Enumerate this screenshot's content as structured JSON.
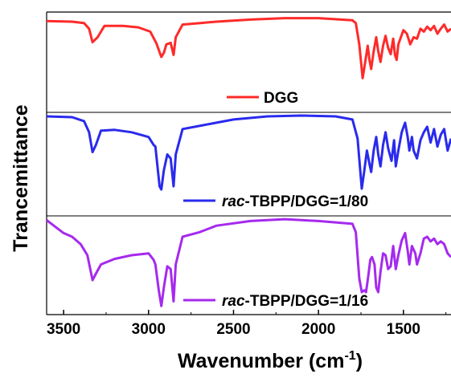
{
  "chart_data": {
    "type": "line",
    "xlabel": "Wavenumber (cm",
    "xlabel_superscript": "-1",
    "xlabel_suffix": ")",
    "ylabel": "Trancemittance",
    "xlim": [
      3600,
      1220
    ],
    "x_reversed": true,
    "x_ticks": [
      3500,
      3000,
      2500,
      2000,
      1500
    ],
    "x_tick_labels": [
      "3500",
      "3000",
      "2500",
      "2000",
      "1500"
    ],
    "legend_placement": "bottom-right of each panel",
    "series": [
      {
        "legend": [
          {
            "text": "DGG"
          }
        ],
        "color": "#ff2a2a",
        "points": [
          [
            3600,
            0.93
          ],
          [
            3450,
            0.92
          ],
          [
            3380,
            0.9
          ],
          [
            3350,
            0.82
          ],
          [
            3330,
            0.63
          ],
          [
            3300,
            0.7
          ],
          [
            3260,
            0.86
          ],
          [
            3150,
            0.86
          ],
          [
            3060,
            0.84
          ],
          [
            2990,
            0.78
          ],
          [
            2955,
            0.62
          ],
          [
            2925,
            0.42
          ],
          [
            2910,
            0.48
          ],
          [
            2895,
            0.6
          ],
          [
            2870,
            0.62
          ],
          [
            2853,
            0.45
          ],
          [
            2840,
            0.7
          ],
          [
            2800,
            0.88
          ],
          [
            2600,
            0.92
          ],
          [
            2400,
            0.95
          ],
          [
            2200,
            0.97
          ],
          [
            2000,
            0.97
          ],
          [
            1800,
            0.94
          ],
          [
            1780,
            0.9
          ],
          [
            1760,
            0.6
          ],
          [
            1740,
            0.12
          ],
          [
            1725,
            0.35
          ],
          [
            1710,
            0.58
          ],
          [
            1700,
            0.38
          ],
          [
            1690,
            0.25
          ],
          [
            1675,
            0.5
          ],
          [
            1660,
            0.7
          ],
          [
            1648,
            0.5
          ],
          [
            1635,
            0.35
          ],
          [
            1620,
            0.58
          ],
          [
            1605,
            0.72
          ],
          [
            1590,
            0.55
          ],
          [
            1575,
            0.46
          ],
          [
            1560,
            0.68
          ],
          [
            1550,
            0.45
          ],
          [
            1540,
            0.38
          ],
          [
            1530,
            0.6
          ],
          [
            1500,
            0.8
          ],
          [
            1480,
            0.75
          ],
          [
            1460,
            0.6
          ],
          [
            1440,
            0.7
          ],
          [
            1420,
            0.68
          ],
          [
            1400,
            0.82
          ],
          [
            1380,
            0.78
          ],
          [
            1360,
            0.85
          ],
          [
            1340,
            0.8
          ],
          [
            1320,
            0.86
          ],
          [
            1300,
            0.75
          ],
          [
            1280,
            0.82
          ],
          [
            1260,
            0.88
          ],
          [
            1240,
            0.78
          ],
          [
            1220,
            0.82
          ]
        ]
      },
      {
        "legend": [
          {
            "text": "rac",
            "italic": true
          },
          {
            "text": "-TBPP/DGG=1/80",
            "italic": false
          }
        ],
        "color": "#2a2aee",
        "points": [
          [
            3600,
            0.98
          ],
          [
            3450,
            0.97
          ],
          [
            3380,
            0.92
          ],
          [
            3350,
            0.78
          ],
          [
            3330,
            0.53
          ],
          [
            3310,
            0.62
          ],
          [
            3280,
            0.8
          ],
          [
            3200,
            0.81
          ],
          [
            3100,
            0.78
          ],
          [
            3000,
            0.72
          ],
          [
            2970,
            0.62
          ],
          [
            2960,
            0.6
          ],
          [
            2935,
            0.1
          ],
          [
            2925,
            0.06
          ],
          [
            2910,
            0.3
          ],
          [
            2890,
            0.5
          ],
          [
            2870,
            0.45
          ],
          [
            2853,
            0.1
          ],
          [
            2840,
            0.5
          ],
          [
            2800,
            0.82
          ],
          [
            2600,
            0.9
          ],
          [
            2500,
            0.94
          ],
          [
            2300,
            0.98
          ],
          [
            2100,
            0.99
          ],
          [
            1900,
            0.98
          ],
          [
            1800,
            0.94
          ],
          [
            1770,
            0.7
          ],
          [
            1745,
            0.07
          ],
          [
            1730,
            0.3
          ],
          [
            1715,
            0.55
          ],
          [
            1700,
            0.38
          ],
          [
            1690,
            0.28
          ],
          [
            1675,
            0.55
          ],
          [
            1660,
            0.72
          ],
          [
            1648,
            0.5
          ],
          [
            1635,
            0.35
          ],
          [
            1620,
            0.62
          ],
          [
            1605,
            0.78
          ],
          [
            1590,
            0.58
          ],
          [
            1570,
            0.42
          ],
          [
            1555,
            0.68
          ],
          [
            1545,
            0.35
          ],
          [
            1530,
            0.55
          ],
          [
            1510,
            0.78
          ],
          [
            1490,
            0.9
          ],
          [
            1475,
            0.72
          ],
          [
            1465,
            0.55
          ],
          [
            1450,
            0.72
          ],
          [
            1440,
            0.55
          ],
          [
            1420,
            0.45
          ],
          [
            1400,
            0.68
          ],
          [
            1380,
            0.78
          ],
          [
            1360,
            0.85
          ],
          [
            1340,
            0.65
          ],
          [
            1320,
            0.82
          ],
          [
            1300,
            0.6
          ],
          [
            1280,
            0.75
          ],
          [
            1260,
            0.82
          ],
          [
            1240,
            0.55
          ],
          [
            1220,
            0.7
          ]
        ]
      },
      {
        "legend": [
          {
            "text": "rac",
            "italic": true
          },
          {
            "text": "-TBPP/DGG=1/16",
            "italic": false
          }
        ],
        "color": "#a52aee",
        "points": [
          [
            3600,
            0.98
          ],
          [
            3550,
            0.91
          ],
          [
            3500,
            0.84
          ],
          [
            3450,
            0.8
          ],
          [
            3400,
            0.72
          ],
          [
            3360,
            0.6
          ],
          [
            3330,
            0.33
          ],
          [
            3310,
            0.4
          ],
          [
            3280,
            0.5
          ],
          [
            3200,
            0.56
          ],
          [
            3100,
            0.6
          ],
          [
            3000,
            0.62
          ],
          [
            2970,
            0.55
          ],
          [
            2960,
            0.5
          ],
          [
            2940,
            0.22
          ],
          [
            2925,
            0.05
          ],
          [
            2910,
            0.25
          ],
          [
            2890,
            0.48
          ],
          [
            2870,
            0.45
          ],
          [
            2853,
            0.1
          ],
          [
            2840,
            0.5
          ],
          [
            2800,
            0.8
          ],
          [
            2700,
            0.85
          ],
          [
            2600,
            0.92
          ],
          [
            2400,
            0.97
          ],
          [
            2200,
            0.99
          ],
          [
            2000,
            0.97
          ],
          [
            1800,
            0.94
          ],
          [
            1780,
            0.85
          ],
          [
            1760,
            0.35
          ],
          [
            1745,
            0.2
          ],
          [
            1730,
            0.22
          ],
          [
            1720,
            0.2
          ],
          [
            1705,
            0.4
          ],
          [
            1695,
            0.55
          ],
          [
            1685,
            0.58
          ],
          [
            1670,
            0.5
          ],
          [
            1660,
            0.25
          ],
          [
            1648,
            0.2
          ],
          [
            1635,
            0.42
          ],
          [
            1620,
            0.62
          ],
          [
            1605,
            0.6
          ],
          [
            1590,
            0.45
          ],
          [
            1575,
            0.48
          ],
          [
            1560,
            0.7
          ],
          [
            1545,
            0.45
          ],
          [
            1530,
            0.6
          ],
          [
            1510,
            0.76
          ],
          [
            1490,
            0.84
          ],
          [
            1475,
            0.65
          ],
          [
            1465,
            0.5
          ],
          [
            1450,
            0.7
          ],
          [
            1430,
            0.62
          ],
          [
            1420,
            0.5
          ],
          [
            1400,
            0.62
          ],
          [
            1380,
            0.78
          ],
          [
            1360,
            0.8
          ],
          [
            1340,
            0.75
          ],
          [
            1320,
            0.78
          ],
          [
            1300,
            0.72
          ],
          [
            1280,
            0.75
          ],
          [
            1260,
            0.72
          ],
          [
            1240,
            0.62
          ],
          [
            1220,
            0.58
          ]
        ]
      }
    ]
  }
}
